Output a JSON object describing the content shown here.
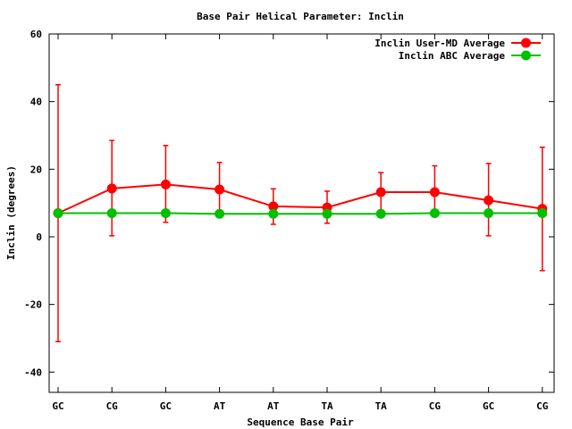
{
  "chart_data": {
    "type": "line",
    "title": "Base Pair Helical Parameter: Inclin",
    "xlabel": "Sequence Base Pair",
    "ylabel": "Inclin (degrees)",
    "categories": [
      "GC",
      "CG",
      "GC",
      "AT",
      "AT",
      "TA",
      "TA",
      "CG",
      "GC",
      "CG"
    ],
    "ylim": [
      -46,
      60
    ],
    "yticks": [
      -40,
      -20,
      0,
      20,
      40,
      60
    ],
    "grid": false,
    "legend_position": "top-right",
    "series": [
      {
        "name": "Inclin User-MD Average",
        "color": "#ff0000",
        "values": [
          7,
          14.3,
          15.5,
          14,
          9,
          8.7,
          13.2,
          13.2,
          10.8,
          8.3
        ],
        "error_low": [
          -31,
          0.3,
          4.3,
          6,
          3.7,
          4,
          7,
          6,
          0.3,
          -10
        ],
        "error_high": [
          45,
          28.5,
          27,
          22,
          14.2,
          13.5,
          19,
          21,
          21.7,
          26.5
        ]
      },
      {
        "name": "Inclin ABC Average",
        "color": "#00c000",
        "values": [
          7,
          7,
          7,
          6.8,
          6.8,
          6.8,
          6.8,
          7,
          7,
          7
        ]
      }
    ]
  }
}
